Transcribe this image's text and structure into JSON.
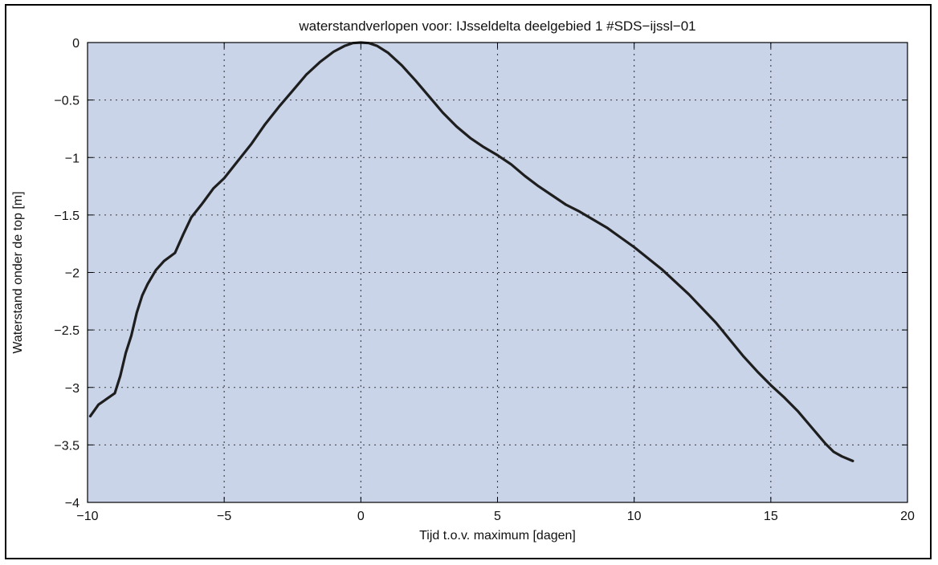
{
  "chart_data": {
    "type": "line",
    "title": "waterstandverlopen voor: IJsseldelta deelgebied 1 #SDS−ijssl−01",
    "xlabel": "Tijd t.o.v. maximum [dagen]",
    "ylabel": "Waterstand onder de top [m]",
    "xlim": [
      -10,
      20
    ],
    "ylim": [
      -4,
      0
    ],
    "xticks": [
      -10,
      -5,
      0,
      5,
      10,
      15,
      20
    ],
    "xtick_labels": [
      "−10",
      "−5",
      "0",
      "5",
      "10",
      "15",
      "20"
    ],
    "yticks": [
      0,
      -0.5,
      -1,
      -1.5,
      -2,
      -2.5,
      -3,
      -3.5,
      -4
    ],
    "ytick_labels": [
      "0",
      "−0.5",
      "−1",
      "−1.5",
      "−2",
      "−2.5",
      "−3",
      "−3.5",
      "−4"
    ],
    "grid": true,
    "colors": {
      "plot_background": "#c9d4e8",
      "line": "#1e1e1e",
      "grid": "#3a3a3a"
    },
    "series": [
      {
        "x": [
          -9.9,
          -9.6,
          -9.3,
          -9.0,
          -8.8,
          -8.6,
          -8.4,
          -8.2,
          -8.0,
          -7.8,
          -7.5,
          -7.2,
          -6.8,
          -6.5,
          -6.2,
          -5.8,
          -5.4,
          -5.0,
          -4.5,
          -4.0,
          -3.5,
          -3.0,
          -2.5,
          -2.0,
          -1.5,
          -1.0,
          -0.6,
          -0.3,
          0.0,
          0.3,
          0.6,
          1.0,
          1.5,
          2.0,
          2.5,
          3.0,
          3.5,
          4.0,
          4.5,
          5.0,
          5.5,
          6.0,
          6.5,
          7.0,
          7.5,
          8.0,
          9.0,
          10.0,
          11.0,
          12.0,
          13.0,
          14.0,
          14.5,
          15.0,
          15.5,
          16.0,
          16.5,
          17.0,
          17.3,
          17.6,
          18.0
        ],
        "y": [
          -3.25,
          -3.15,
          -3.1,
          -3.05,
          -2.9,
          -2.7,
          -2.55,
          -2.35,
          -2.2,
          -2.1,
          -1.98,
          -1.9,
          -1.83,
          -1.67,
          -1.52,
          -1.4,
          -1.27,
          -1.18,
          -1.03,
          -0.88,
          -0.71,
          -0.56,
          -0.42,
          -0.28,
          -0.17,
          -0.08,
          -0.03,
          -0.005,
          0.0,
          -0.005,
          -0.03,
          -0.09,
          -0.2,
          -0.33,
          -0.47,
          -0.61,
          -0.73,
          -0.83,
          -0.91,
          -0.98,
          -1.06,
          -1.16,
          -1.25,
          -1.33,
          -1.41,
          -1.47,
          -1.61,
          -1.78,
          -1.97,
          -2.19,
          -2.44,
          -2.73,
          -2.86,
          -2.98,
          -3.09,
          -3.21,
          -3.35,
          -3.49,
          -3.56,
          -3.6,
          -3.64
        ]
      }
    ]
  }
}
